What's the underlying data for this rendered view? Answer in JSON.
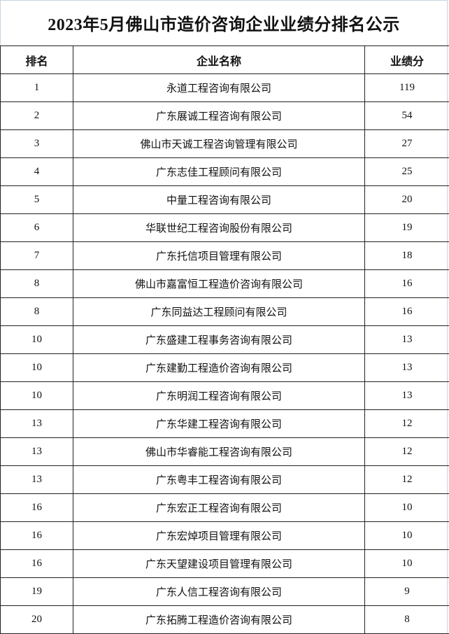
{
  "title": "2023年5月佛山市造价咨询企业业绩分排名公示",
  "headers": [
    "排名",
    "企业名称",
    "业绩分"
  ],
  "rows": [
    [
      "1",
      "永道工程咨询有限公司",
      "119"
    ],
    [
      "2",
      "广东展诚工程咨询有限公司",
      "54"
    ],
    [
      "3",
      "佛山市天诚工程咨询管理有限公司",
      "27"
    ],
    [
      "4",
      "广东志佳工程顾问有限公司",
      "25"
    ],
    [
      "5",
      "中量工程咨询有限公司",
      "20"
    ],
    [
      "6",
      "华联世纪工程咨询股份有限公司",
      "19"
    ],
    [
      "7",
      "广东托信项目管理有限公司",
      "18"
    ],
    [
      "8",
      "佛山市嘉富恒工程造价咨询有限公司",
      "16"
    ],
    [
      "8",
      "广东同益达工程顾问有限公司",
      "16"
    ],
    [
      "10",
      "广东盛建工程事务咨询有限公司",
      "13"
    ],
    [
      "10",
      "广东建勤工程造价咨询有限公司",
      "13"
    ],
    [
      "10",
      "广东明润工程咨询有限公司",
      "13"
    ],
    [
      "13",
      "广东华建工程咨询有限公司",
      "12"
    ],
    [
      "13",
      "佛山市华睿能工程咨询有限公司",
      "12"
    ],
    [
      "13",
      "广东粤丰工程咨询有限公司",
      "12"
    ],
    [
      "16",
      "广东宏正工程咨询有限公司",
      "10"
    ],
    [
      "16",
      "广东宏焯项目管理有限公司",
      "10"
    ],
    [
      "16",
      "广东天望建设项目管理有限公司",
      "10"
    ],
    [
      "19",
      "广东人信工程咨询有限公司",
      "9"
    ],
    [
      "20",
      "广东拓腾工程造价咨询有限公司",
      "8"
    ]
  ]
}
